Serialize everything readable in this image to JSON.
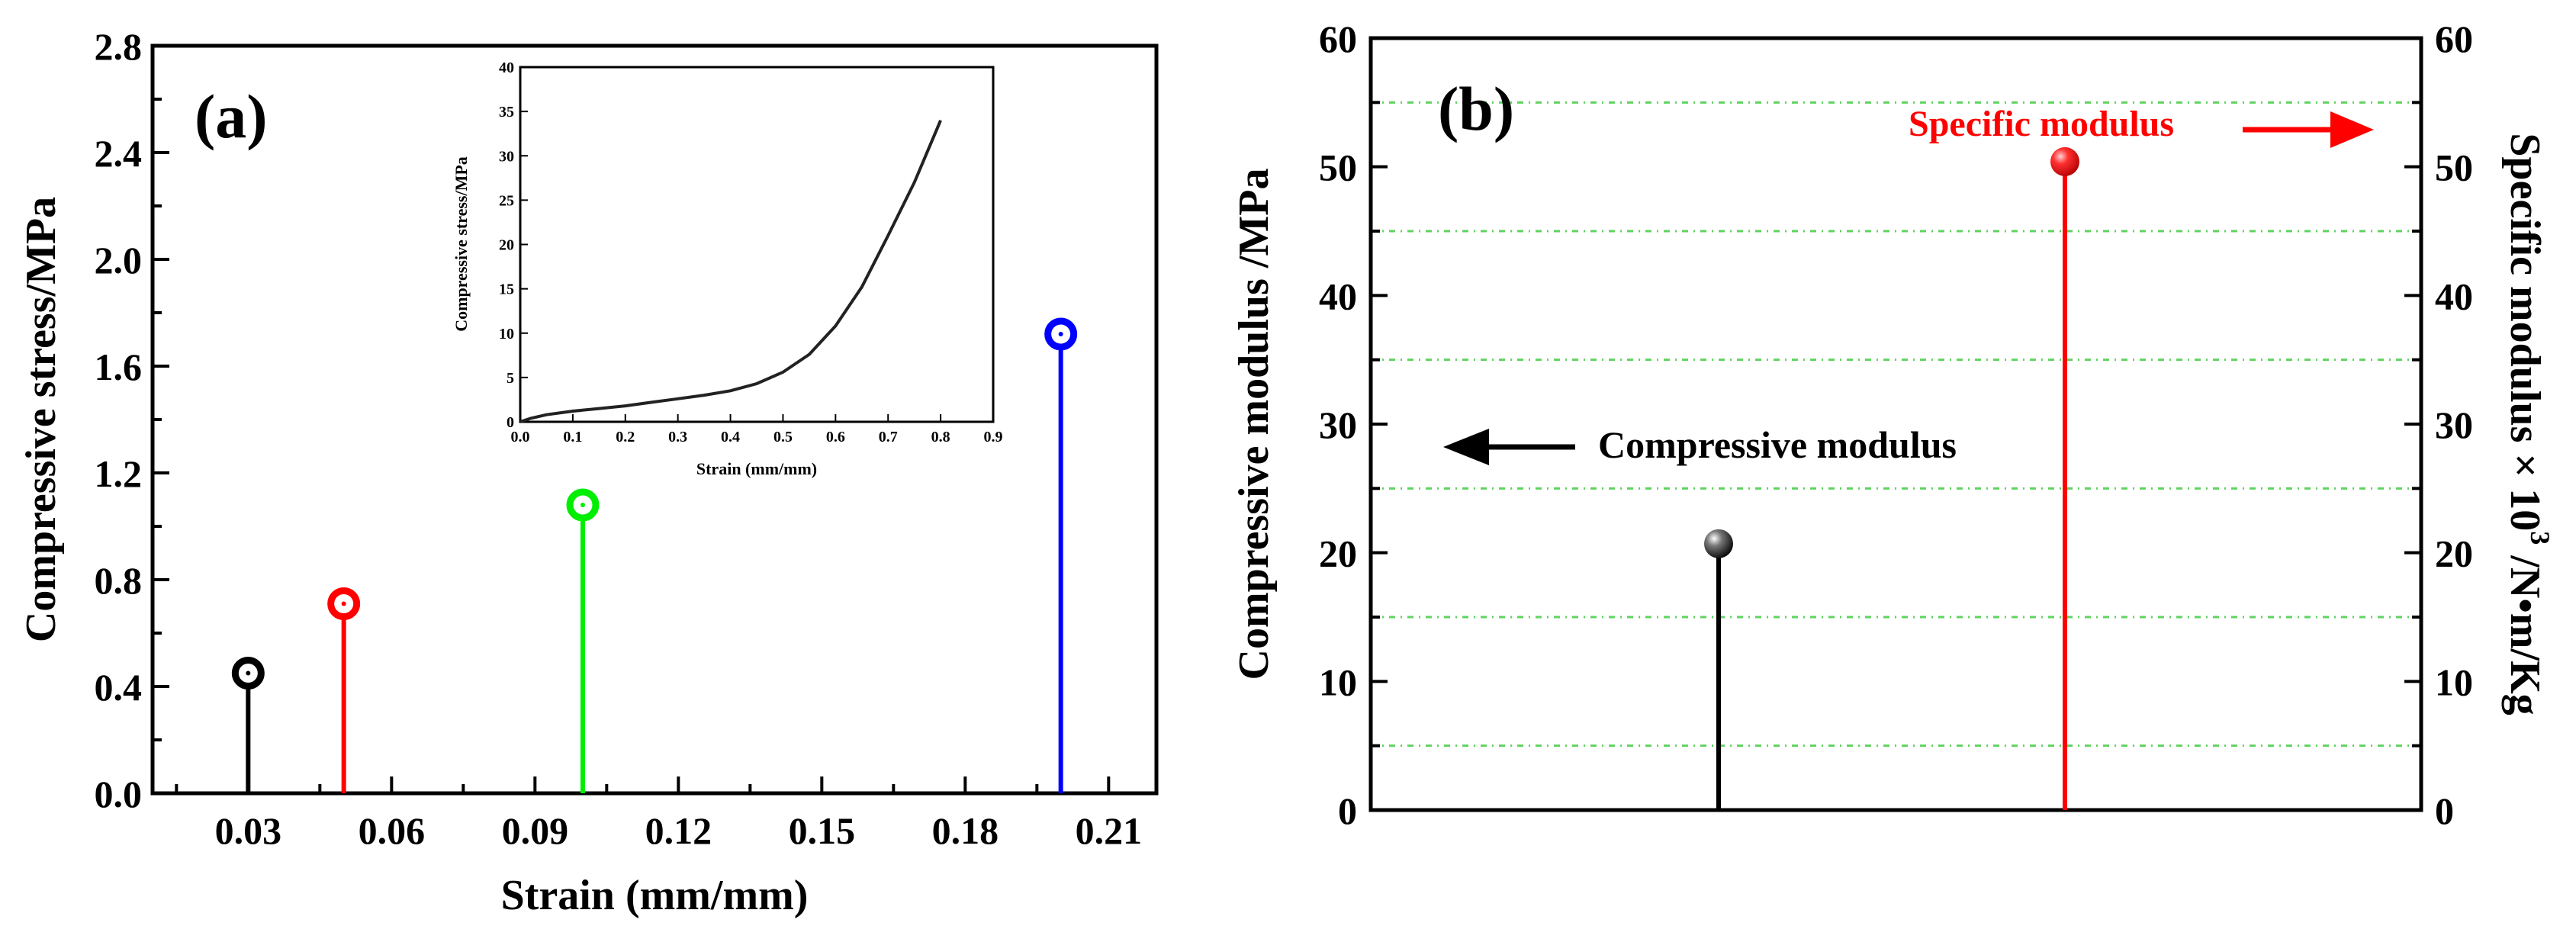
{
  "chart_data": [
    {
      "type": "stem",
      "panel_label": "(a)",
      "xlabel": "Strain (mm/mm)",
      "ylabel": "Compressive stress/MPa",
      "xlim": [
        0.01,
        0.22
      ],
      "ylim": [
        0.0,
        2.8
      ],
      "x_ticks": [
        "0.03",
        "0.06",
        "0.09",
        "0.12",
        "0.15",
        "0.18",
        "0.21"
      ],
      "y_ticks": [
        "0.0",
        "0.4",
        "0.8",
        "1.2",
        "1.6",
        "2.0",
        "2.4",
        "2.8"
      ],
      "series": [
        {
          "name": "0.03",
          "x": 0.03,
          "y": 0.45,
          "color": "#000000"
        },
        {
          "name": "0.05",
          "x": 0.05,
          "y": 0.71,
          "color": "#ff0000"
        },
        {
          "name": "0.10",
          "x": 0.1,
          "y": 1.08,
          "color": "#00ee00"
        },
        {
          "name": "0.20",
          "x": 0.2,
          "y": 1.72,
          "color": "#0000ff"
        }
      ],
      "inset": {
        "type": "line",
        "xlabel": "Strain (mm/mm)",
        "ylabel": "Compressive stress/MPa",
        "xlim": [
          0.0,
          0.9
        ],
        "ylim": [
          0,
          40
        ],
        "x_ticks": [
          "0.0",
          "0.1",
          "0.2",
          "0.3",
          "0.4",
          "0.5",
          "0.6",
          "0.7",
          "0.8",
          "0.9"
        ],
        "y_ticks": [
          "0",
          "5",
          "10",
          "15",
          "20",
          "25",
          "30",
          "35",
          "40"
        ],
        "x": [
          0.0,
          0.02,
          0.05,
          0.1,
          0.15,
          0.2,
          0.25,
          0.3,
          0.35,
          0.4,
          0.45,
          0.5,
          0.55,
          0.6,
          0.65,
          0.7,
          0.75,
          0.8
        ],
        "y": [
          0.0,
          0.4,
          0.8,
          1.2,
          1.5,
          1.8,
          2.2,
          2.6,
          3.0,
          3.5,
          4.3,
          5.6,
          7.6,
          10.8,
          15.2,
          21.0,
          27.0,
          34.0
        ]
      }
    },
    {
      "type": "stem",
      "panel_label": "(b)",
      "ylabel_left": "Compressive modulus /MPa",
      "ylabel_right_main": "Specific modulus × 10",
      "ylabel_right_sup": "3",
      "ylabel_right_unit": " /N•m/Kg",
      "ylim_left": [
        0,
        60
      ],
      "ylim_right": [
        0,
        60
      ],
      "y_ticks_left": [
        "0",
        "10",
        "20",
        "30",
        "40",
        "50",
        "60"
      ],
      "y_ticks_right": [
        "0",
        "10",
        "20",
        "30",
        "40",
        "50",
        "60"
      ],
      "gridlines": [
        5,
        15,
        25,
        35,
        45,
        55
      ],
      "grid_color": "#5fd35f",
      "series": [
        {
          "name": "Compressive modulus",
          "axis": "left",
          "value": 20.7,
          "color": "#000000"
        },
        {
          "name": "Specific modulus",
          "axis": "right",
          "value": 50.4,
          "color": "#ff0000"
        }
      ],
      "annotations": [
        {
          "text": "Compressive modulus",
          "color": "#000000",
          "arrow": "left"
        },
        {
          "text": "Specific modulus",
          "color": "#ff0000",
          "arrow": "right"
        }
      ]
    }
  ]
}
